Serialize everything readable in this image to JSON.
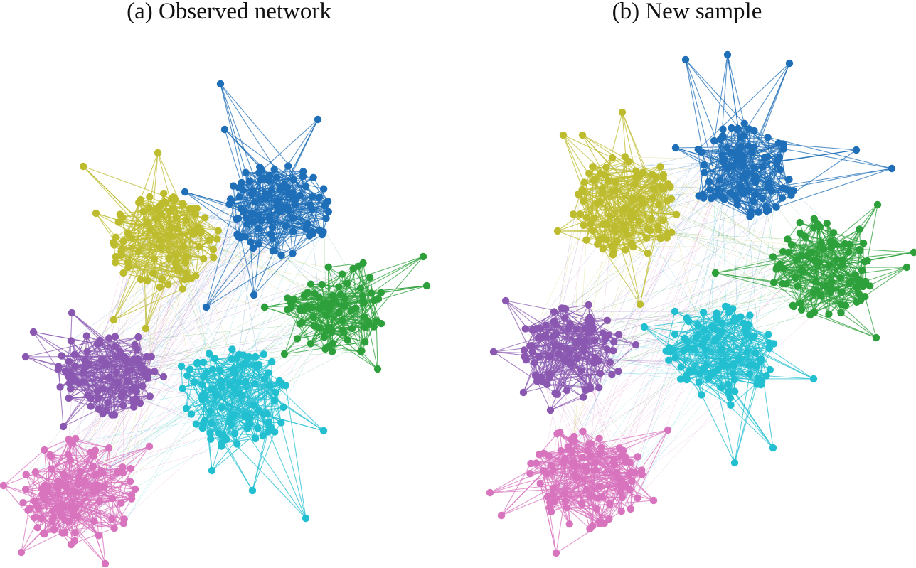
{
  "figure": {
    "panels": [
      {
        "id": "a",
        "title": "(a) Observed network",
        "communities": [
          {
            "color": "#1f6fb8",
            "label": "blue"
          },
          {
            "color": "#bdbb2e",
            "label": "olive"
          },
          {
            "color": "#2ea03b",
            "label": "green"
          },
          {
            "color": "#8a58b0",
            "label": "purple"
          },
          {
            "color": "#22bfd1",
            "label": "cyan"
          },
          {
            "color": "#d873bd",
            "label": "pink"
          }
        ]
      },
      {
        "id": "b",
        "title": "(b) New sample",
        "communities": [
          {
            "color": "#1f6fb8",
            "label": "blue"
          },
          {
            "color": "#bdbb2e",
            "label": "olive"
          },
          {
            "color": "#2ea03b",
            "label": "green"
          },
          {
            "color": "#8a58b0",
            "label": "purple"
          },
          {
            "color": "#22bfd1",
            "label": "cyan"
          },
          {
            "color": "#d873bd",
            "label": "pink"
          }
        ]
      }
    ]
  }
}
